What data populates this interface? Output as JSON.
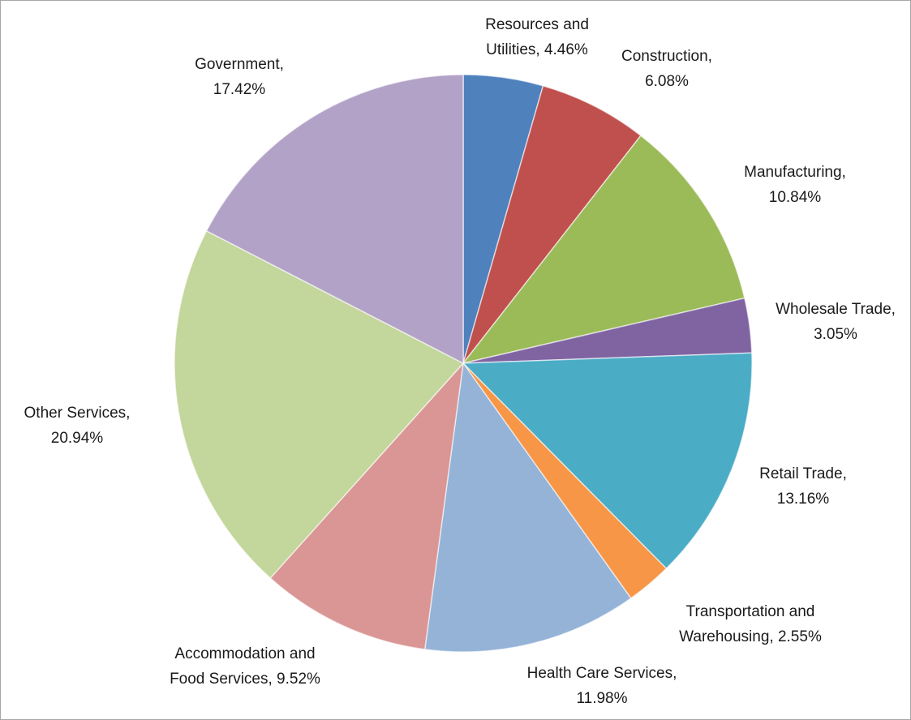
{
  "chart_data": {
    "type": "pie",
    "values": [
      4.46,
      6.08,
      10.84,
      3.05,
      13.16,
      2.55,
      11.98,
      9.52,
      20.94,
      17.42
    ],
    "value_labels": [
      "Resources and Utilities, 4.46%",
      "Construction, 6.08%",
      "Manufacturing, 10.84%",
      "Wholesale Trade, 3.05%",
      "Retail Trade, 13.16%",
      "Transportation and Warehousing, 2.55%",
      "Health Care Services, 11.98%",
      "Accommodation and Food Services, 9.52%",
      "Other Services, 20.94%",
      "Government, 17.42%"
    ],
    "colors": [
      "#4f81bd",
      "#c0504d",
      "#9bbb59",
      "#8064a2",
      "#4bacc6",
      "#f79646",
      "#95b3d7",
      "#d99694",
      "#c3d69b",
      "#b3a2c7"
    ]
  }
}
